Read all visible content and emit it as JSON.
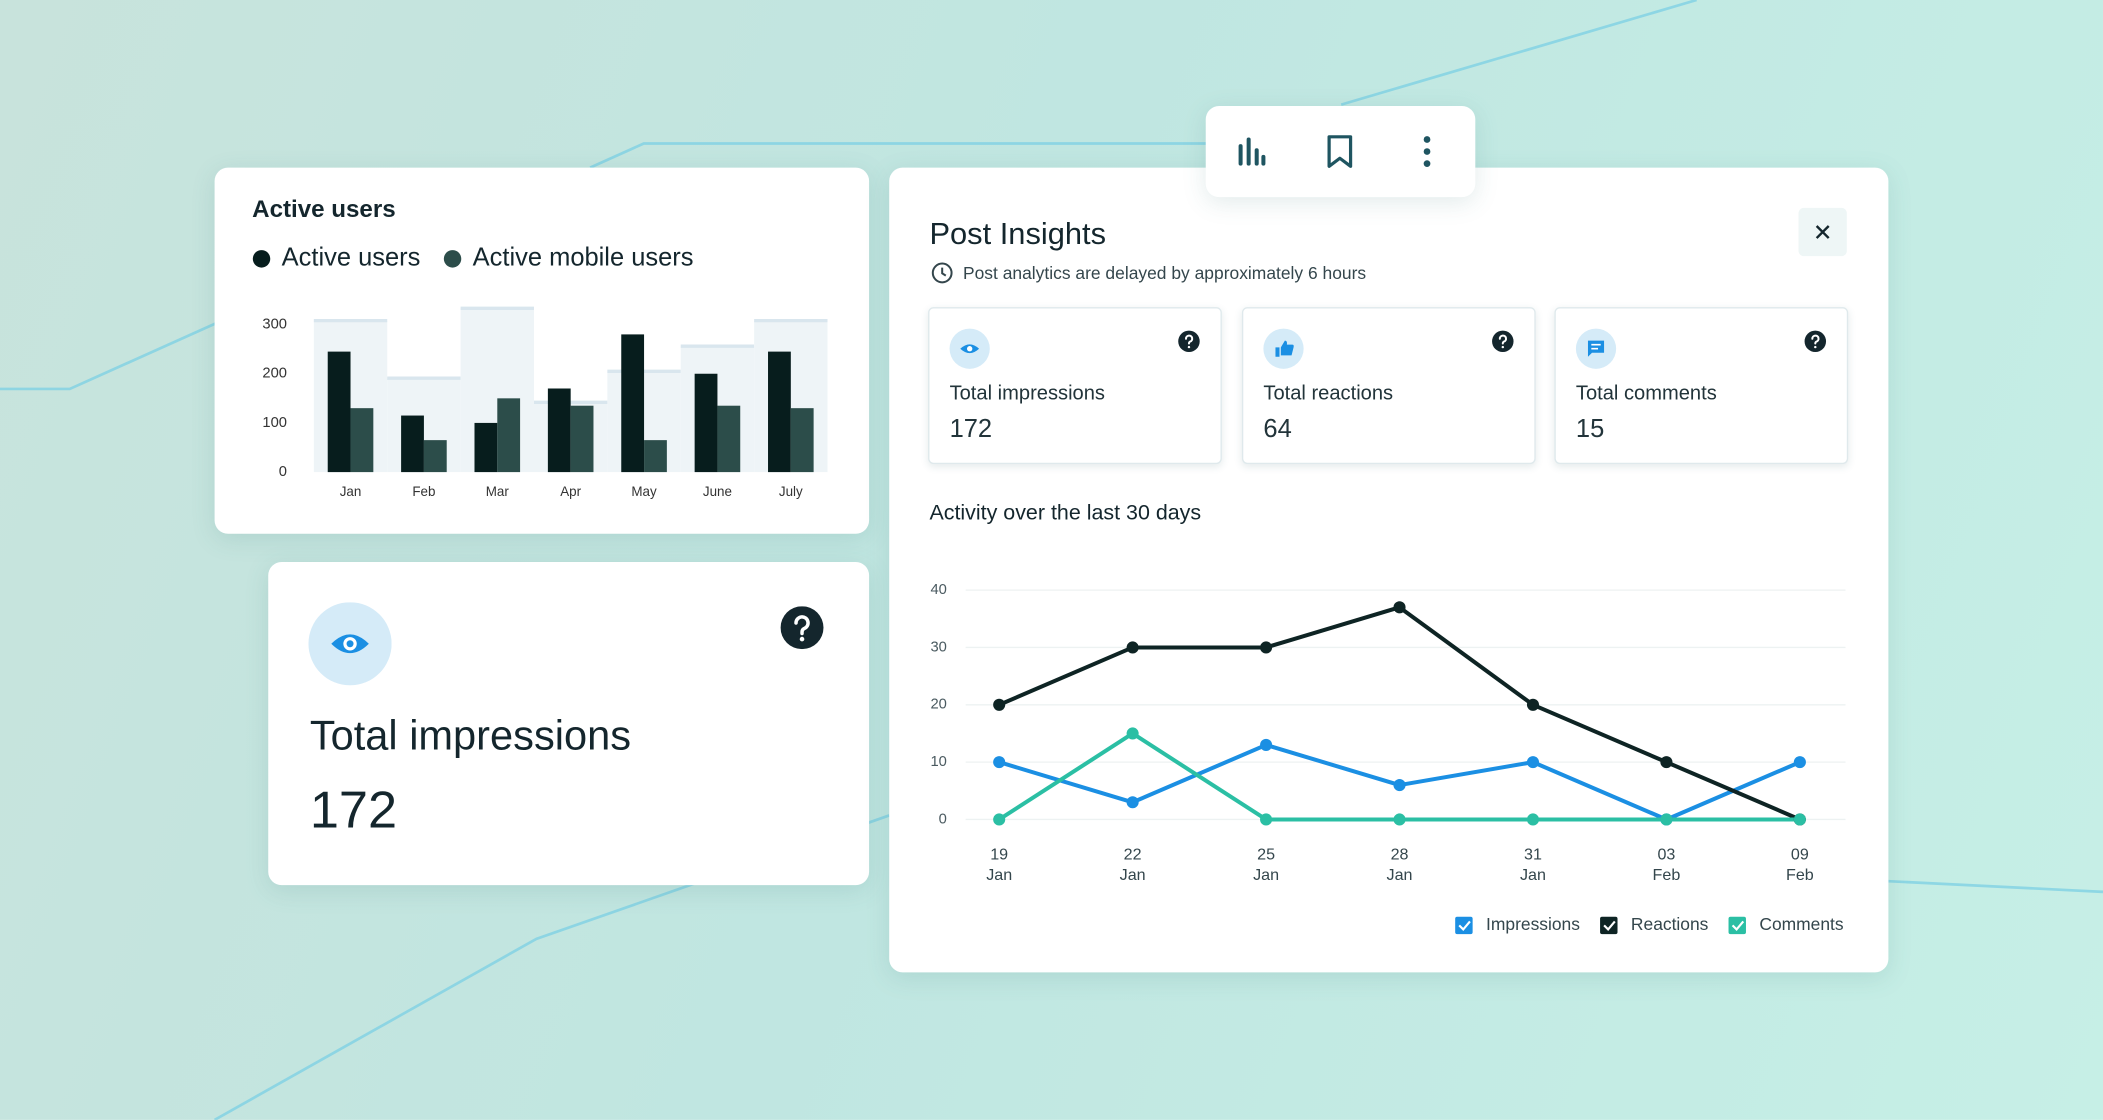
{
  "chart_data": [
    {
      "type": "bar",
      "title": "Active users",
      "categories": [
        "Jan",
        "Feb",
        "Mar",
        "Apr",
        "May",
        "June",
        "July"
      ],
      "series": [
        {
          "name": "Active users",
          "color": "#071d1d",
          "values": [
            245,
            115,
            100,
            170,
            280,
            200,
            245
          ]
        },
        {
          "name": "Active mobile users",
          "color": "#2c4d4a",
          "values": [
            130,
            65,
            150,
            135,
            65,
            135,
            130
          ]
        },
        {
          "color": "#eef4f7",
          "values": [
            308,
            191,
            333,
            142,
            205,
            256,
            308
          ]
        }
      ],
      "ylim": [
        0,
        340
      ],
      "yticks": [
        0,
        100,
        200,
        300
      ]
    },
    {
      "type": "line",
      "title": "Activity over the last 30 days",
      "categories": [
        "19\nJan",
        "22\nJan",
        "25\nJan",
        "28\nJan",
        "31\nJan",
        "03\nFeb",
        "09\nFeb"
      ],
      "series": [
        {
          "name": "Impressions",
          "color": "#1b8fe3",
          "values": [
            10,
            3,
            13,
            6,
            10,
            0,
            10
          ]
        },
        {
          "name": "Reactions",
          "color": "#0e2424",
          "values": [
            20,
            30,
            30,
            37,
            20,
            10,
            0
          ]
        },
        {
          "name": "Comments",
          "color": "#2bbfa4",
          "values": [
            0,
            15,
            0,
            0,
            0,
            0,
            0
          ]
        }
      ],
      "ylim": [
        0,
        40
      ],
      "yticks": [
        0,
        10,
        20,
        30,
        40
      ],
      "grid": true
    }
  ],
  "impressions_card": {
    "label": "Total impressions",
    "value": 172
  },
  "post_insights": {
    "title": "Post Insights",
    "note": "Post analytics are delayed by approximately 6 hours",
    "stats": [
      {
        "label": "Total impressions",
        "value": 172
      },
      {
        "label": "Total reactions",
        "value": 64
      },
      {
        "label": "Total comments",
        "value": 15
      }
    ]
  }
}
